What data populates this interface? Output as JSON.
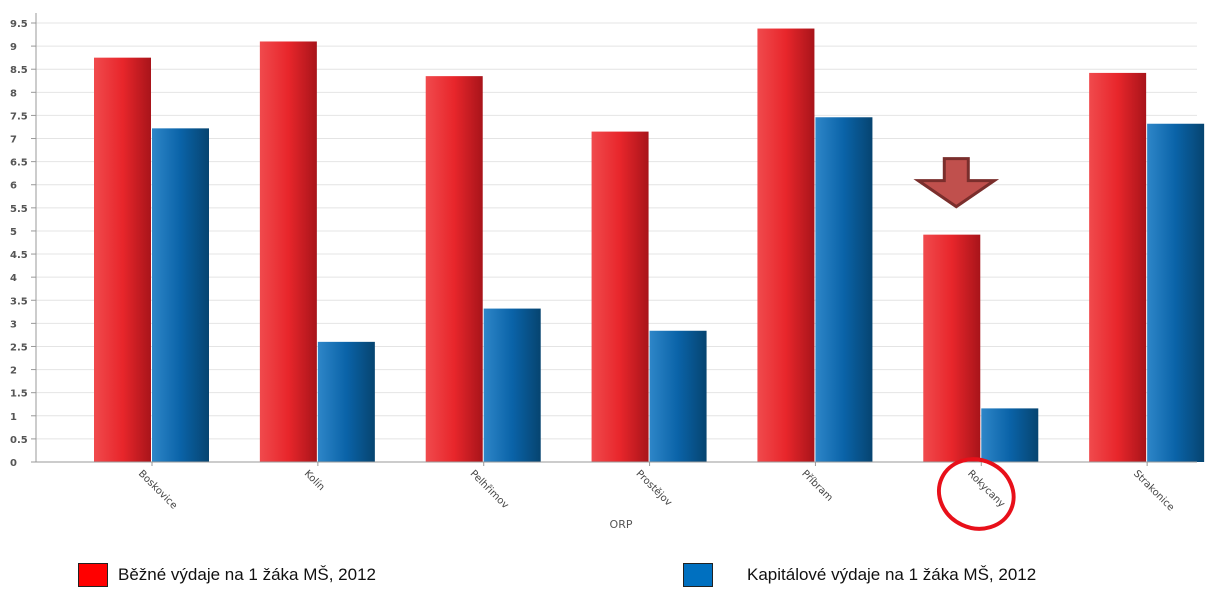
{
  "chart_data": {
    "type": "bar",
    "title": "",
    "xlabel": "ORP",
    "ylabel": "",
    "ylim": [
      0,
      9.5
    ],
    "ytick_step": 0.5,
    "ytick_labels": [
      "0",
      "0.5",
      "1",
      "1.5",
      "2",
      "2.5",
      "3",
      "3.5",
      "4",
      "4.5",
      "5",
      "5.5",
      "6",
      "6.5",
      "7",
      "7.5",
      "8",
      "8.5",
      "9",
      "9.5"
    ],
    "categories": [
      "Boskovice",
      "Kolín",
      "Pelhřimov",
      "Prostějov",
      "Příbram",
      "Rokycany",
      "Strakonice"
    ],
    "series": [
      {
        "name": "Běžné výdaje na 1 žáka MŠ, 2012",
        "color": "#e8262b",
        "values": [
          8.75,
          9.1,
          8.35,
          7.15,
          9.38,
          4.92,
          8.42
        ]
      },
      {
        "name": "Kapitálové výdaje na 1 žáka MŠ, 2012",
        "color": "#0a63a8",
        "values": [
          7.22,
          2.6,
          3.32,
          2.84,
          7.46,
          1.16,
          7.32
        ]
      }
    ],
    "grid": true,
    "legend_position": "bottom",
    "annotations": {
      "highlighted_category": "Rokycany",
      "arrow_color": "#c0504d",
      "circle_color": "#e8101a"
    }
  }
}
